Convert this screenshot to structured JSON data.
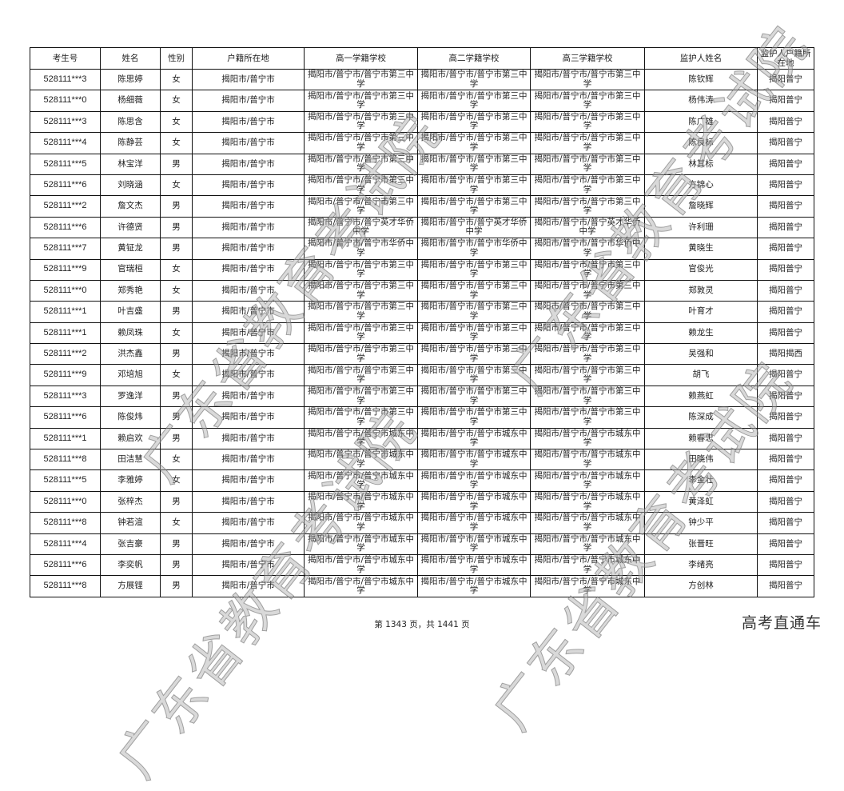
{
  "headers": [
    "考生号",
    "姓名",
    "性别",
    "户籍所在地",
    "高一学籍学校",
    "高二学籍学校",
    "高三学籍学校",
    "监护人姓名",
    "监护人户籍所在地"
  ],
  "rows": [
    [
      "528111***3",
      "陈思婷",
      "女",
      "揭阳市/普宁市",
      "揭阳市/普宁市/普宁市第三中学",
      "揭阳市/普宁市/普宁市第三中学",
      "揭阳市/普宁市/普宁市第三中学",
      "陈钦辉",
      "揭阳普宁"
    ],
    [
      "528111***0",
      "杨细薇",
      "女",
      "揭阳市/普宁市",
      "揭阳市/普宁市/普宁市第三中学",
      "揭阳市/普宁市/普宁市第三中学",
      "揭阳市/普宁市/普宁市第三中学",
      "杨伟涛",
      "揭阳普宁"
    ],
    [
      "528111***3",
      "陈思含",
      "女",
      "揭阳市/普宁市",
      "揭阳市/普宁市/普宁市第三中学",
      "揭阳市/普宁市/普宁市第三中学",
      "揭阳市/普宁市/普宁市第三中学",
      "陈广雄",
      "揭阳普宁"
    ],
    [
      "528111***4",
      "陈静芸",
      "女",
      "揭阳市/普宁市",
      "揭阳市/普宁市/普宁市第三中学",
      "揭阳市/普宁市/普宁市第三中学",
      "揭阳市/普宁市/普宁市第三中学",
      "陈良标",
      "揭阳普宁"
    ],
    [
      "528111***5",
      "林宝洋",
      "男",
      "揭阳市/普宁市",
      "揭阳市/普宁市/普宁市第三中学",
      "揭阳市/普宁市/普宁市第三中学",
      "揭阳市/普宁市/普宁市第三中学",
      "林其标",
      "揭阳普宁"
    ],
    [
      "528111***6",
      "刘晓涵",
      "女",
      "揭阳市/普宁市",
      "揭阳市/普宁市/普宁市第三中学",
      "揭阳市/普宁市/普宁市第三中学",
      "揭阳市/普宁市/普宁市第三中学",
      "方锦心",
      "揭阳普宁"
    ],
    [
      "528111***2",
      "詹文杰",
      "男",
      "揭阳市/普宁市",
      "揭阳市/普宁市/普宁市第三中学",
      "揭阳市/普宁市/普宁市第三中学",
      "揭阳市/普宁市/普宁市第三中学",
      "詹晓辉",
      "揭阳普宁"
    ],
    [
      "528111***6",
      "许德贤",
      "男",
      "揭阳市/普宁市",
      "揭阳市/普宁市/普宁英才华侨中学",
      "揭阳市/普宁市/普宁英才华侨中学",
      "揭阳市/普宁市/普宁英才华侨中学",
      "许利珊",
      "揭阳普宁"
    ],
    [
      "528111***7",
      "黄钲龙",
      "男",
      "揭阳市/普宁市",
      "揭阳市/普宁市/普宁市华侨中学",
      "揭阳市/普宁市/普宁市华侨中学",
      "揭阳市/普宁市/普宁市华侨中学",
      "黄晓生",
      "揭阳普宁"
    ],
    [
      "528111***9",
      "官瑞桓",
      "女",
      "揭阳市/普宁市",
      "揭阳市/普宁市/普宁市第三中学",
      "揭阳市/普宁市/普宁市第三中学",
      "揭阳市/普宁市/普宁市第三中学",
      "官俊光",
      "揭阳普宁"
    ],
    [
      "528111***0",
      "郑秀艳",
      "女",
      "揭阳市/普宁市",
      "揭阳市/普宁市/普宁市第三中学",
      "揭阳市/普宁市/普宁市第三中学",
      "揭阳市/普宁市/普宁市第三中学",
      "郑敦灵",
      "揭阳普宁"
    ],
    [
      "528111***1",
      "叶吉盛",
      "男",
      "揭阳市/普宁市",
      "揭阳市/普宁市/普宁市第三中学",
      "揭阳市/普宁市/普宁市第三中学",
      "揭阳市/普宁市/普宁市第三中学",
      "叶育才",
      "揭阳普宁"
    ],
    [
      "528111***1",
      "赖凤珠",
      "女",
      "揭阳市/普宁市",
      "揭阳市/普宁市/普宁市第三中学",
      "揭阳市/普宁市/普宁市第三中学",
      "揭阳市/普宁市/普宁市第三中学",
      "赖龙生",
      "揭阳普宁"
    ],
    [
      "528111***2",
      "洪杰鑫",
      "男",
      "揭阳市/普宁市",
      "揭阳市/普宁市/普宁市第三中学",
      "揭阳市/普宁市/普宁市第三中学",
      "揭阳市/普宁市/普宁市第三中学",
      "吴强和",
      "揭阳揭西"
    ],
    [
      "528111***9",
      "邓培旭",
      "女",
      "揭阳市/普宁市",
      "揭阳市/普宁市/普宁市第三中学",
      "揭阳市/普宁市/普宁市第三中学",
      "揭阳市/普宁市/普宁市第三中学",
      "胡飞",
      "揭阳普宁"
    ],
    [
      "528111***3",
      "罗逸洋",
      "男",
      "揭阳市/普宁市",
      "揭阳市/普宁市/普宁市第三中学",
      "揭阳市/普宁市/普宁市第三中学",
      "揭阳市/普宁市/普宁市第三中学",
      "赖燕虹",
      "揭阳普宁"
    ],
    [
      "528111***6",
      "陈俊炜",
      "男",
      "揭阳市/普宁市",
      "揭阳市/普宁市/普宁市第三中学",
      "揭阳市/普宁市/普宁市第三中学",
      "揭阳市/普宁市/普宁市第三中学",
      "陈深成",
      "揭阳普宁"
    ],
    [
      "528111***1",
      "赖启欢",
      "男",
      "揭阳市/普宁市",
      "揭阳市/普宁市/普宁市城东中学",
      "揭阳市/普宁市/普宁市城东中学",
      "揭阳市/普宁市/普宁市城东中学",
      "赖春忠",
      "揭阳普宁"
    ],
    [
      "528111***8",
      "田洁慧",
      "女",
      "揭阳市/普宁市",
      "揭阳市/普宁市/普宁市城东中学",
      "揭阳市/普宁市/普宁市城东中学",
      "揭阳市/普宁市/普宁市城东中学",
      "田晓伟",
      "揭阳普宁"
    ],
    [
      "528111***5",
      "李雅婷",
      "女",
      "揭阳市/普宁市",
      "揭阳市/普宁市/普宁市城东中学",
      "揭阳市/普宁市/普宁市城东中学",
      "揭阳市/普宁市/普宁市城东中学",
      "李金壮",
      "揭阳普宁"
    ],
    [
      "528111***0",
      "张梓杰",
      "男",
      "揭阳市/普宁市",
      "揭阳市/普宁市/普宁市城东中学",
      "揭阳市/普宁市/普宁市城东中学",
      "揭阳市/普宁市/普宁市城东中学",
      "黄泽虹",
      "揭阳普宁"
    ],
    [
      "528111***8",
      "钟若渲",
      "女",
      "揭阳市/普宁市",
      "揭阳市/普宁市/普宁市城东中学",
      "揭阳市/普宁市/普宁市城东中学",
      "揭阳市/普宁市/普宁市城东中学",
      "钟少平",
      "揭阳普宁"
    ],
    [
      "528111***4",
      "张吉豪",
      "男",
      "揭阳市/普宁市",
      "揭阳市/普宁市/普宁市城东中学",
      "揭阳市/普宁市/普宁市城东中学",
      "揭阳市/普宁市/普宁市城东中学",
      "张晋旺",
      "揭阳普宁"
    ],
    [
      "528111***6",
      "李奕帆",
      "男",
      "揭阳市/普宁市",
      "揭阳市/普宁市/普宁市城东中学",
      "揭阳市/普宁市/普宁市城东中学",
      "揭阳市/普宁市/普宁市城东中学",
      "李绪亮",
      "揭阳普宁"
    ],
    [
      "528111***8",
      "方展铿",
      "男",
      "揭阳市/普宁市",
      "揭阳市/普宁市/普宁市城东中学",
      "揭阳市/普宁市/普宁市城东中学",
      "揭阳市/普宁市/普宁市城东中学",
      "方创林",
      "揭阳普宁"
    ]
  ],
  "footer": {
    "page_text": "第 1343 页，共 1441 页"
  },
  "logo": "高考直通车",
  "watermark": "广东省教育考试院"
}
